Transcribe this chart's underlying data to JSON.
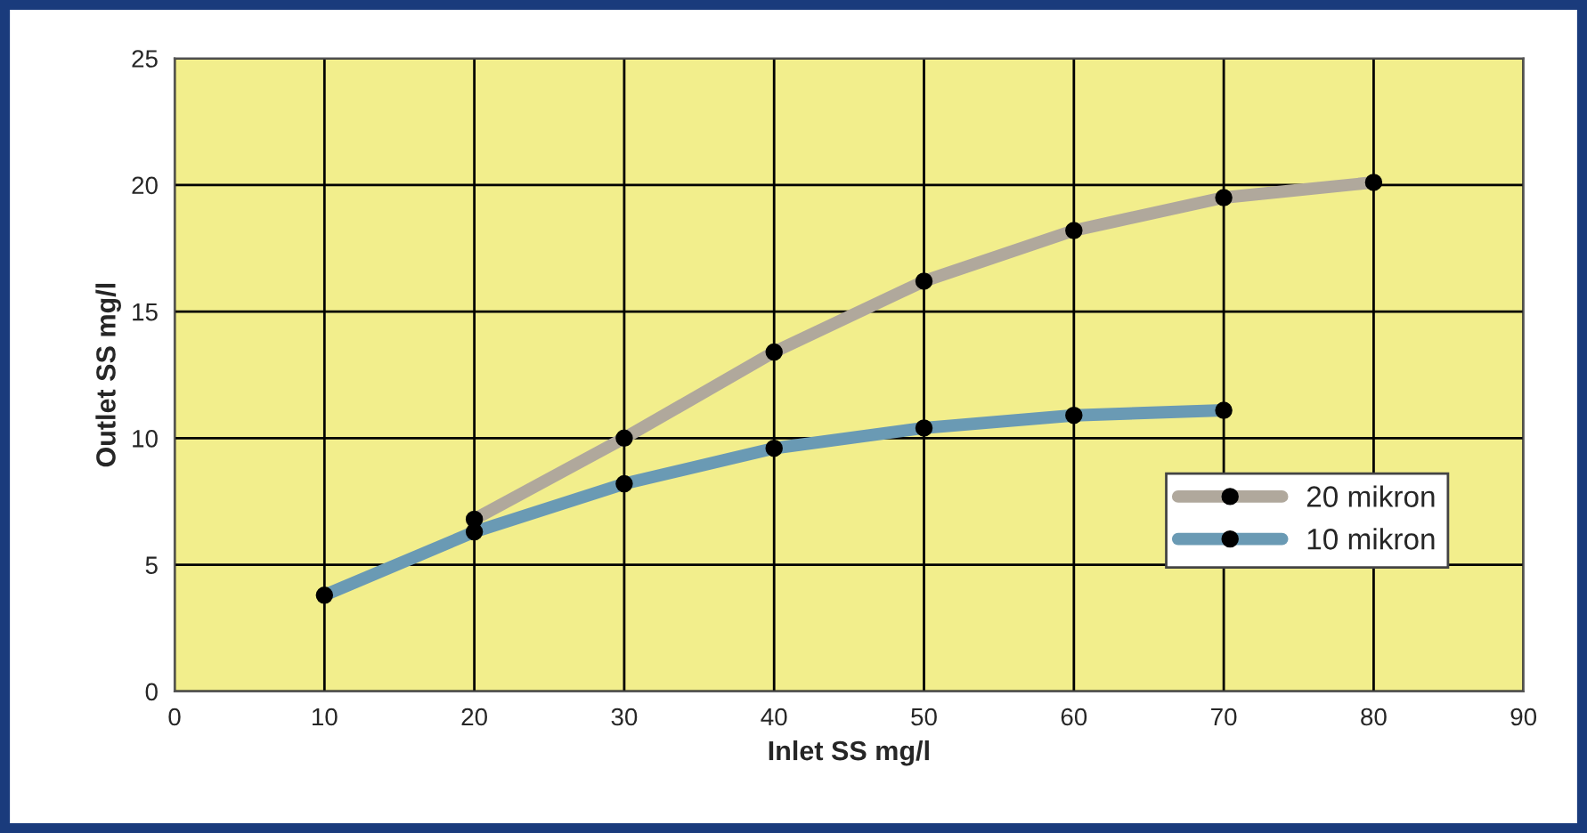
{
  "chart_data": {
    "type": "line",
    "xlabel": "Inlet SS mg/l",
    "ylabel": "Outlet SS mg/l",
    "xlim": [
      0,
      90
    ],
    "xticks": [
      0,
      10,
      20,
      30,
      40,
      50,
      60,
      70,
      80,
      90
    ],
    "ylim": [
      0,
      25
    ],
    "yticks": [
      0,
      5,
      10,
      15,
      20,
      25
    ],
    "grid": true,
    "legend": "right",
    "marker": "circle",
    "line_style": "solid",
    "series": [
      {
        "name": "20 mikron",
        "color": "#b0a89c",
        "x": [
          20,
          30,
          40,
          50,
          60,
          70,
          80
        ],
        "values": [
          6.8,
          10.0,
          13.4,
          16.2,
          18.2,
          19.5,
          20.1
        ]
      },
      {
        "name": "10 mikron",
        "color": "#6a9ab4",
        "x": [
          10,
          20,
          30,
          40,
          50,
          60,
          70
        ],
        "values": [
          3.8,
          6.3,
          8.2,
          9.6,
          10.4,
          10.9,
          11.1
        ]
      }
    ]
  }
}
